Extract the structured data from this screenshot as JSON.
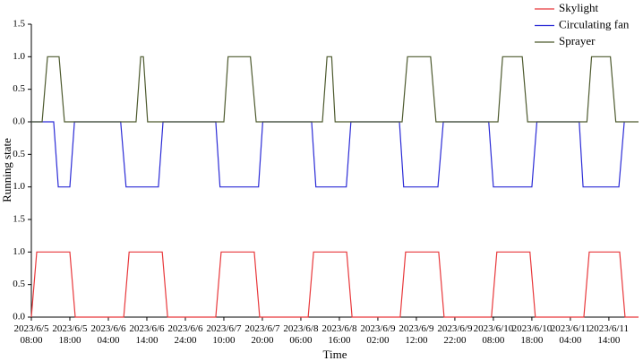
{
  "chart_data": [
    {
      "type": "line",
      "xlabel": "Time",
      "ylabel": "Running state",
      "xlim": [
        8,
        165.7
      ],
      "ylim": [
        0,
        1.5
      ],
      "yticks": [
        {
          "value": 0,
          "label": "0.0"
        },
        {
          "value": 0.5,
          "label": "0.5"
        },
        {
          "value": 1,
          "label": "1.0"
        },
        {
          "value": 1.5,
          "label": "1.5"
        }
      ],
      "xticks": [
        {
          "value": 8,
          "label": "2023/6/5 08:00"
        },
        {
          "value": 18,
          "label": "2023/6/5 18:00"
        },
        {
          "value": 28,
          "label": "2023/6/6 04:00"
        },
        {
          "value": 38,
          "label": "2023/6/6 14:00"
        },
        {
          "value": 48,
          "label": "2023/6/6 24:00"
        },
        {
          "value": 58,
          "label": "2023/6/7 10:00"
        },
        {
          "value": 68,
          "label": "2023/6/7 20:00"
        },
        {
          "value": 78,
          "label": "2023/6/8 06:00"
        },
        {
          "value": 88,
          "label": "2023/6/8 16:00"
        },
        {
          "value": 98,
          "label": "2023/6/9 02:00"
        },
        {
          "value": 108,
          "label": "2023/6/9 12:00"
        },
        {
          "value": 118,
          "label": "2023/6/9 22:00"
        },
        {
          "value": 128,
          "label": "2023/6/10 08:00"
        },
        {
          "value": 138,
          "label": "2023/6/10 18:00"
        },
        {
          "value": 148,
          "label": "2023/6/11 04:00"
        },
        {
          "value": 158,
          "label": "2023/6/11 14:00"
        }
      ],
      "series": [
        {
          "name": "Skylight",
          "color": "#e8383b",
          "x": [
            8,
            9.4,
            18,
            19.4,
            32,
            33.4,
            42,
            43.4,
            55.9,
            57.3,
            65.9,
            67.3,
            79.9,
            81.3,
            89.9,
            91.3,
            103.8,
            105.2,
            113.8,
            115.2,
            127.5,
            128.9,
            137.5,
            138.9,
            151.5,
            152.9,
            160.8,
            162.2,
            165.7
          ],
          "values": [
            0,
            1,
            1,
            0,
            0,
            1,
            1,
            0,
            0,
            1,
            1,
            0,
            0,
            1,
            1,
            0,
            0,
            1,
            1,
            0,
            0,
            1,
            1,
            0,
            0,
            1,
            1,
            0,
            0
          ]
        }
      ]
    },
    {
      "type": "line",
      "xlim": [
        8,
        165.7
      ],
      "ylim": [
        1.5,
        0
      ],
      "yticks": [
        {
          "value": 1,
          "label": "1.0"
        },
        {
          "value": 0.5,
          "label": "0.5"
        },
        {
          "value": 0,
          "label": "0.0"
        }
      ],
      "series": [
        {
          "name": "Circulating fan",
          "color": "#2b2bd6",
          "x": [
            8,
            13.8,
            15,
            18,
            19.2,
            31.2,
            32.6,
            41,
            42.2,
            55.9,
            57,
            67,
            68.1,
            80.8,
            81.9,
            89.8,
            91,
            103.6,
            104.7,
            113.6,
            115,
            126.8,
            128,
            138,
            139.3,
            150.3,
            151.3,
            160.6,
            162
          ],
          "values": [
            0,
            0,
            1,
            1,
            0,
            0,
            1,
            1,
            0,
            0,
            1,
            1,
            0,
            0,
            1,
            1,
            0,
            0,
            1,
            1,
            0,
            0,
            1,
            1,
            0,
            0,
            1,
            1,
            0
          ]
        }
      ]
    },
    {
      "type": "line",
      "xlim": [
        8,
        165.7
      ],
      "ylim": [
        0,
        1.5
      ],
      "yticks": [
        {
          "value": 0.5,
          "label": "0.5"
        },
        {
          "value": 1,
          "label": "1.0"
        },
        {
          "value": 1.5,
          "label": "1.5"
        }
      ],
      "series": [
        {
          "name": "Sprayer",
          "color": "#4d5a2e",
          "x": [
            8,
            10.8,
            12.2,
            15.2,
            16.6,
            35.2,
            36.4,
            37.1,
            38.2,
            58,
            59.1,
            64.9,
            66.4,
            83.6,
            84.8,
            86,
            86.9,
            104.3,
            105.7,
            111.7,
            113.1,
            129.2,
            130.4,
            135.5,
            136.9,
            152.3,
            153.5,
            158.4,
            159.8,
            165.7
          ],
          "values": [
            0,
            0,
            1,
            1,
            0,
            0,
            1,
            1,
            0,
            0,
            1,
            1,
            0,
            0,
            1,
            1,
            0,
            0,
            1,
            1,
            0,
            0,
            1,
            1,
            0,
            0,
            1,
            1,
            0,
            0
          ]
        }
      ]
    }
  ]
}
